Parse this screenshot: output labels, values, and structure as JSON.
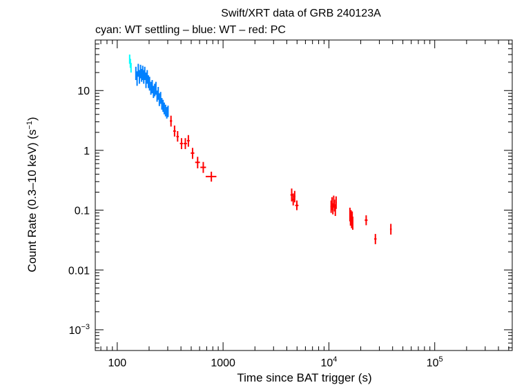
{
  "chart_data": {
    "type": "scatter",
    "title": "Swift/XRT data of GRB 240123A",
    "subtitle": "cyan: WT settling – blue: WT – red: PC",
    "xlabel": "Time since BAT trigger (s)",
    "ylabel": "Count Rate (0.3–10 keV) (s",
    "ylabel_sup": "−1",
    "ylabel_close": ")",
    "x_scale": "log",
    "y_scale": "log",
    "xlim": [
      62,
      540000
    ],
    "ylim": [
      0.00045,
      70
    ],
    "grid": false,
    "x_ticks": [
      {
        "value": 100,
        "base": "100",
        "sup": ""
      },
      {
        "value": 1000,
        "base": "1000",
        "sup": ""
      },
      {
        "value": 10000,
        "base": "10",
        "sup": "4"
      },
      {
        "value": 100000,
        "base": "10",
        "sup": "5"
      }
    ],
    "y_ticks": [
      {
        "value": 10,
        "base": "10",
        "sup": ""
      },
      {
        "value": 1,
        "base": "1",
        "sup": ""
      },
      {
        "value": 0.1,
        "base": "0.1",
        "sup": ""
      },
      {
        "value": 0.01,
        "base": "0.01",
        "sup": ""
      },
      {
        "value": 0.001,
        "base": "10",
        "sup": "−3"
      }
    ],
    "series": [
      {
        "mode": "WT settling",
        "color": "#00ffff",
        "points": [
          {
            "x": 131,
            "y": 34,
            "xerr": 0.9,
            "ylo": 28,
            "yhi": 40
          },
          {
            "x": 133,
            "y": 29,
            "xerr": 0.9,
            "ylo": 24,
            "yhi": 34
          },
          {
            "x": 135,
            "y": 24,
            "xerr": 0.9,
            "ylo": 20,
            "yhi": 29
          }
        ]
      },
      {
        "mode": "WT",
        "color": "#0080ff",
        "points": [
          {
            "x": 150,
            "y": 20,
            "xerr": 2,
            "ylo": 15,
            "yhi": 25
          },
          {
            "x": 154,
            "y": 16,
            "xerr": 2,
            "ylo": 12,
            "yhi": 21
          },
          {
            "x": 158,
            "y": 22,
            "xerr": 2,
            "ylo": 17,
            "yhi": 28
          },
          {
            "x": 162,
            "y": 17,
            "xerr": 2,
            "ylo": 13,
            "yhi": 22
          },
          {
            "x": 166,
            "y": 21,
            "xerr": 2,
            "ylo": 16,
            "yhi": 27
          },
          {
            "x": 170,
            "y": 18,
            "xerr": 2,
            "ylo": 14,
            "yhi": 23
          },
          {
            "x": 174,
            "y": 20,
            "xerr": 2,
            "ylo": 15,
            "yhi": 26
          },
          {
            "x": 178,
            "y": 17,
            "xerr": 2,
            "ylo": 13,
            "yhi": 22
          },
          {
            "x": 182,
            "y": 19,
            "xerr": 2,
            "ylo": 15,
            "yhi": 25
          },
          {
            "x": 187,
            "y": 15,
            "xerr": 2,
            "ylo": 11,
            "yhi": 20
          },
          {
            "x": 192,
            "y": 17,
            "xerr": 2,
            "ylo": 13,
            "yhi": 22
          },
          {
            "x": 197,
            "y": 14,
            "xerr": 2,
            "ylo": 11,
            "yhi": 18
          },
          {
            "x": 202,
            "y": 13,
            "xerr": 2,
            "ylo": 10,
            "yhi": 17
          },
          {
            "x": 208,
            "y": 11,
            "xerr": 2,
            "ylo": 8.5,
            "yhi": 14
          },
          {
            "x": 214,
            "y": 12,
            "xerr": 2,
            "ylo": 9,
            "yhi": 15
          },
          {
            "x": 220,
            "y": 9.5,
            "xerr": 2,
            "ylo": 7.5,
            "yhi": 12
          },
          {
            "x": 226,
            "y": 10,
            "xerr": 2,
            "ylo": 8,
            "yhi": 13
          },
          {
            "x": 232,
            "y": 11,
            "xerr": 2,
            "ylo": 8.5,
            "yhi": 14
          },
          {
            "x": 238,
            "y": 8,
            "xerr": 2,
            "ylo": 6.5,
            "yhi": 10
          },
          {
            "x": 244,
            "y": 9,
            "xerr": 2,
            "ylo": 7,
            "yhi": 11.5
          },
          {
            "x": 250,
            "y": 7,
            "xerr": 2,
            "ylo": 5.5,
            "yhi": 9
          },
          {
            "x": 257,
            "y": 7.5,
            "xerr": 2,
            "ylo": 6,
            "yhi": 9.5
          },
          {
            "x": 264,
            "y": 6,
            "xerr": 2,
            "ylo": 4.8,
            "yhi": 7.5
          },
          {
            "x": 271,
            "y": 5.5,
            "xerr": 2,
            "ylo": 4.4,
            "yhi": 7
          },
          {
            "x": 278,
            "y": 5,
            "xerr": 2,
            "ylo": 4,
            "yhi": 6.3
          },
          {
            "x": 286,
            "y": 4.6,
            "xerr": 2,
            "ylo": 3.7,
            "yhi": 5.8
          },
          {
            "x": 294,
            "y": 4.2,
            "xerr": 2,
            "ylo": 3.4,
            "yhi": 5.3
          },
          {
            "x": 302,
            "y": 4.5,
            "xerr": 2,
            "ylo": 3.6,
            "yhi": 5.6
          }
        ]
      },
      {
        "mode": "PC",
        "color": "#ff0000",
        "points": [
          {
            "x": 322,
            "y": 3.1,
            "xerr": 8,
            "ylo": 2.5,
            "yhi": 3.8
          },
          {
            "x": 348,
            "y": 2.1,
            "xerr": 10,
            "ylo": 1.7,
            "yhi": 2.6
          },
          {
            "x": 372,
            "y": 1.7,
            "xerr": 10,
            "ylo": 1.4,
            "yhi": 2.1
          },
          {
            "x": 405,
            "y": 1.3,
            "xerr": 14,
            "ylo": 1.05,
            "yhi": 1.6
          },
          {
            "x": 440,
            "y": 1.3,
            "xerr": 16,
            "ylo": 1.05,
            "yhi": 1.6
          },
          {
            "x": 470,
            "y": 1.45,
            "xerr": 14,
            "ylo": 1.15,
            "yhi": 1.8
          },
          {
            "x": 515,
            "y": 0.9,
            "xerr": 20,
            "ylo": 0.72,
            "yhi": 1.1
          },
          {
            "x": 575,
            "y": 0.63,
            "xerr": 30,
            "ylo": 0.5,
            "yhi": 0.78
          },
          {
            "x": 650,
            "y": 0.52,
            "xerr": 40,
            "ylo": 0.42,
            "yhi": 0.64
          },
          {
            "x": 775,
            "y": 0.365,
            "xerr": 90,
            "ylo": 0.3,
            "yhi": 0.44
          },
          {
            "x": 4450,
            "y": 0.18,
            "xerr": 120,
            "ylo": 0.14,
            "yhi": 0.23
          },
          {
            "x": 4600,
            "y": 0.15,
            "xerr": 100,
            "ylo": 0.12,
            "yhi": 0.19
          },
          {
            "x": 4750,
            "y": 0.17,
            "xerr": 80,
            "ylo": 0.135,
            "yhi": 0.21
          },
          {
            "x": 4980,
            "y": 0.12,
            "xerr": 180,
            "ylo": 0.1,
            "yhi": 0.145
          },
          {
            "x": 10500,
            "y": 0.115,
            "xerr": 150,
            "ylo": 0.09,
            "yhi": 0.145
          },
          {
            "x": 10700,
            "y": 0.13,
            "xerr": 150,
            "ylo": 0.1,
            "yhi": 0.165
          },
          {
            "x": 10900,
            "y": 0.105,
            "xerr": 150,
            "ylo": 0.085,
            "yhi": 0.13
          },
          {
            "x": 11100,
            "y": 0.14,
            "xerr": 150,
            "ylo": 0.11,
            "yhi": 0.175
          },
          {
            "x": 11300,
            "y": 0.12,
            "xerr": 150,
            "ylo": 0.095,
            "yhi": 0.15
          },
          {
            "x": 11500,
            "y": 0.1,
            "xerr": 150,
            "ylo": 0.08,
            "yhi": 0.125
          },
          {
            "x": 11700,
            "y": 0.135,
            "xerr": 150,
            "ylo": 0.105,
            "yhi": 0.17
          },
          {
            "x": 15800,
            "y": 0.085,
            "xerr": 150,
            "ylo": 0.065,
            "yhi": 0.11
          },
          {
            "x": 16000,
            "y": 0.07,
            "xerr": 150,
            "ylo": 0.055,
            "yhi": 0.09
          },
          {
            "x": 16200,
            "y": 0.08,
            "xerr": 150,
            "ylo": 0.062,
            "yhi": 0.1
          },
          {
            "x": 16400,
            "y": 0.065,
            "xerr": 150,
            "ylo": 0.05,
            "yhi": 0.085
          },
          {
            "x": 16600,
            "y": 0.075,
            "xerr": 150,
            "ylo": 0.058,
            "yhi": 0.095
          },
          {
            "x": 16800,
            "y": 0.06,
            "xerr": 150,
            "ylo": 0.047,
            "yhi": 0.078
          },
          {
            "x": 22500,
            "y": 0.068,
            "xerr": 700,
            "ylo": 0.056,
            "yhi": 0.082
          },
          {
            "x": 27500,
            "y": 0.033,
            "xerr": 700,
            "ylo": 0.027,
            "yhi": 0.04
          },
          {
            "x": 38500,
            "y": 0.048,
            "xerr": 700,
            "ylo": 0.039,
            "yhi": 0.059
          }
        ]
      }
    ]
  }
}
